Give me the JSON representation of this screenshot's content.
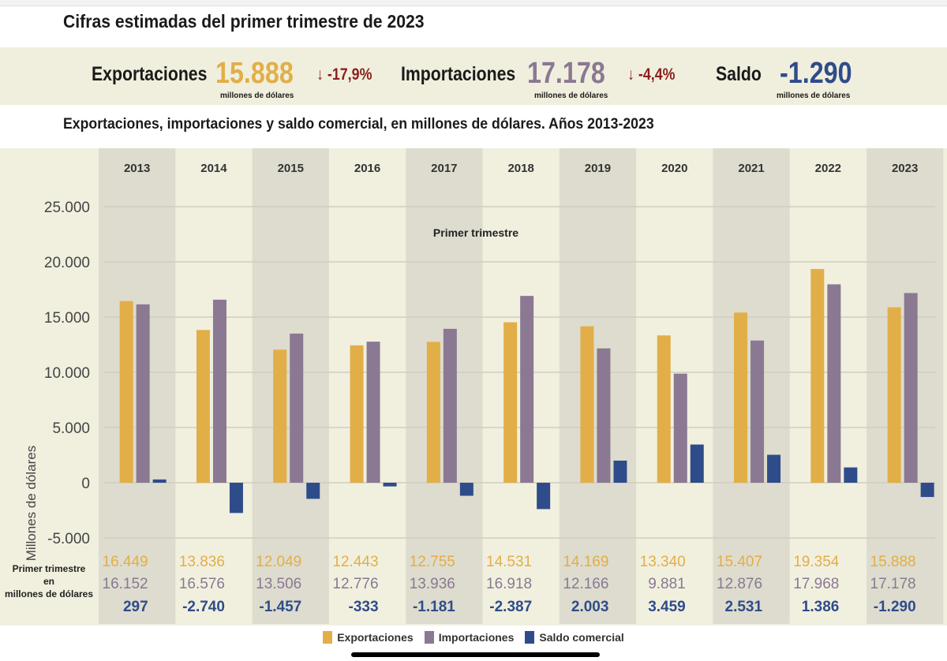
{
  "title": "Cifras estimadas del primer trimestre de 2023",
  "kpis": {
    "exports": {
      "label": "Exportaciones",
      "value": "15.888",
      "change": "↓ -17,9%",
      "unit": "millones de dólares"
    },
    "imports": {
      "label": "Importaciones",
      "value": "17.178",
      "change": "↓ -4,4%",
      "unit": "millones de dólares"
    },
    "balance": {
      "label": "Saldo",
      "value": "-1.290",
      "unit": "millones de dólares"
    }
  },
  "colors": {
    "exports": "#e2ae48",
    "imports": "#8b7892",
    "balance": "#2f4c8a",
    "bg": "#f1f0df",
    "shade": "#dddcce"
  },
  "chart_data": {
    "type": "bar",
    "title": "Exportaciones, importaciones y saldo comercial, en millones de dólares. Años 2013-2023",
    "annotation": "Primer trimestre",
    "ylabel": "Millones de dólares",
    "ylim": [
      -5000,
      25000
    ],
    "yticks": [
      "25.000",
      "20.000",
      "15.000",
      "10.000",
      "5.000",
      "0",
      "-5.000"
    ],
    "ytick_values": [
      25000,
      20000,
      15000,
      10000,
      5000,
      0,
      -5000
    ],
    "grid": true,
    "legend_position": "bottom",
    "table_label": [
      "Primer trimestre",
      "en",
      "millones de dólares"
    ],
    "categories": [
      "2013",
      "2014",
      "2015",
      "2016",
      "2017",
      "2018",
      "2019",
      "2020",
      "2021",
      "2022",
      "2023"
    ],
    "series": [
      {
        "name": "Exportaciones",
        "values": [
          16449,
          13836,
          12049,
          12443,
          12755,
          14531,
          14169,
          13340,
          15407,
          19354,
          15888
        ],
        "labels": [
          "16.449",
          "13.836",
          "12.049",
          "12.443",
          "12.755",
          "14.531",
          "14.169",
          "13.340",
          "15.407",
          "19.354",
          "15.888"
        ]
      },
      {
        "name": "Importaciones",
        "values": [
          16152,
          16576,
          13506,
          12776,
          13936,
          16918,
          12166,
          9881,
          12876,
          17968,
          17178
        ],
        "labels": [
          "16.152",
          "16.576",
          "13.506",
          "12.776",
          "13.936",
          "16.918",
          "12.166",
          "9.881",
          "12.876",
          "17.968",
          "17.178"
        ]
      },
      {
        "name": "Saldo comercial",
        "values": [
          297,
          -2740,
          -1457,
          -333,
          -1181,
          -2387,
          2003,
          3459,
          2531,
          1386,
          -1290
        ],
        "labels": [
          "297",
          "-2.740",
          "-1.457",
          "-333",
          "-1.181",
          "-2.387",
          "2.003",
          "3.459",
          "2.531",
          "1.386",
          "-1.290"
        ]
      }
    ]
  }
}
